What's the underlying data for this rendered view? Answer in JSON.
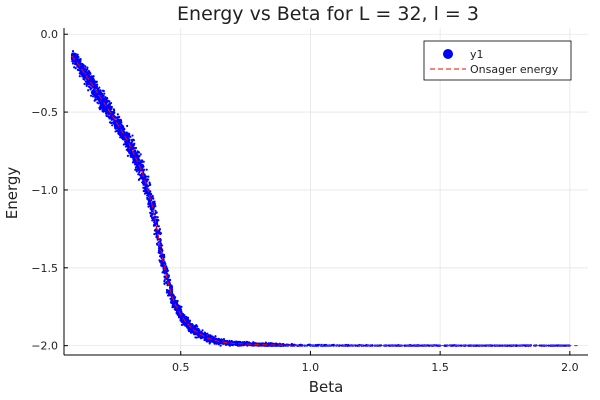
{
  "chart_data": {
    "type": "scatter",
    "title": "Energy vs Beta for L = 32, l = 3",
    "xlabel": "Beta",
    "ylabel": "Energy",
    "xlim": [
      0.05,
      2.07
    ],
    "ylim": [
      -2.06,
      0.04
    ],
    "xticks": [
      0.5,
      1.0,
      1.5,
      2.0
    ],
    "xtick_labels": [
      "0.5",
      "1.0",
      "1.5",
      "2.0"
    ],
    "yticks": [
      0.0,
      -0.5,
      -1.0,
      -1.5,
      -2.0
    ],
    "ytick_labels": [
      "0.0",
      "−0.5",
      "−1.0",
      "−1.5",
      "−2.0"
    ],
    "grid": true,
    "legend_position": "top-right",
    "series": [
      {
        "name": "y1",
        "kind": "scatter",
        "color": "#0000ff",
        "x": [
          0.08,
          0.1,
          0.12,
          0.15,
          0.18,
          0.2,
          0.22,
          0.25,
          0.28,
          0.3,
          0.32,
          0.35,
          0.37,
          0.39,
          0.4,
          0.41,
          0.42,
          0.43,
          0.44,
          0.45,
          0.46,
          0.47,
          0.48,
          0.5,
          0.52,
          0.55,
          0.6,
          0.65,
          0.7,
          0.8,
          0.9,
          1.0,
          1.1,
          1.2,
          1.3,
          1.4,
          1.5,
          1.6,
          1.7,
          1.8,
          1.9,
          2.0
        ],
        "y": [
          -0.14,
          -0.18,
          -0.23,
          -0.3,
          -0.38,
          -0.43,
          -0.48,
          -0.56,
          -0.64,
          -0.7,
          -0.77,
          -0.88,
          -0.98,
          -1.1,
          -1.18,
          -1.27,
          -1.36,
          -1.44,
          -1.52,
          -1.59,
          -1.65,
          -1.7,
          -1.74,
          -1.8,
          -1.85,
          -1.9,
          -1.95,
          -1.975,
          -1.985,
          -1.993,
          -1.997,
          -1.999,
          -2.0,
          -2.0,
          -2.0,
          -2.0,
          -2.0,
          -2.0,
          -2.0,
          -2.0,
          -2.0,
          -2.0
        ],
        "spread": [
          0.03,
          0.05,
          0.05,
          0.06,
          0.06,
          0.06,
          0.06,
          0.06,
          0.06,
          0.07,
          0.07,
          0.08,
          0.09,
          0.1,
          0.1,
          0.1,
          0.1,
          0.09,
          0.09,
          0.08,
          0.07,
          0.06,
          0.05,
          0.045,
          0.04,
          0.035,
          0.028,
          0.02,
          0.015,
          0.01,
          0.008,
          0.006,
          0.005,
          0.004,
          0.003,
          0.003,
          0.002,
          0.002,
          0.002,
          0.002,
          0.002,
          0.002
        ]
      },
      {
        "name": "Onsager energy",
        "kind": "line",
        "style": "dashed",
        "color": "#ff0000",
        "x": [
          0.08,
          0.1,
          0.12,
          0.15,
          0.18,
          0.2,
          0.22,
          0.25,
          0.28,
          0.3,
          0.32,
          0.35,
          0.37,
          0.39,
          0.4,
          0.41,
          0.42,
          0.43,
          0.44,
          0.45,
          0.46,
          0.47,
          0.48,
          0.5,
          0.52,
          0.55,
          0.6,
          0.65,
          0.7,
          0.8,
          0.9,
          1.0,
          1.2,
          1.5,
          1.8,
          2.03
        ],
        "y": [
          -0.14,
          -0.18,
          -0.23,
          -0.3,
          -0.38,
          -0.43,
          -0.48,
          -0.56,
          -0.64,
          -0.7,
          -0.77,
          -0.88,
          -0.98,
          -1.1,
          -1.18,
          -1.27,
          -1.36,
          -1.44,
          -1.52,
          -1.59,
          -1.65,
          -1.7,
          -1.74,
          -1.8,
          -1.85,
          -1.9,
          -1.95,
          -1.975,
          -1.985,
          -1.993,
          -1.997,
          -1.999,
          -2.0,
          -2.0,
          -2.0,
          -2.0
        ]
      }
    ]
  }
}
